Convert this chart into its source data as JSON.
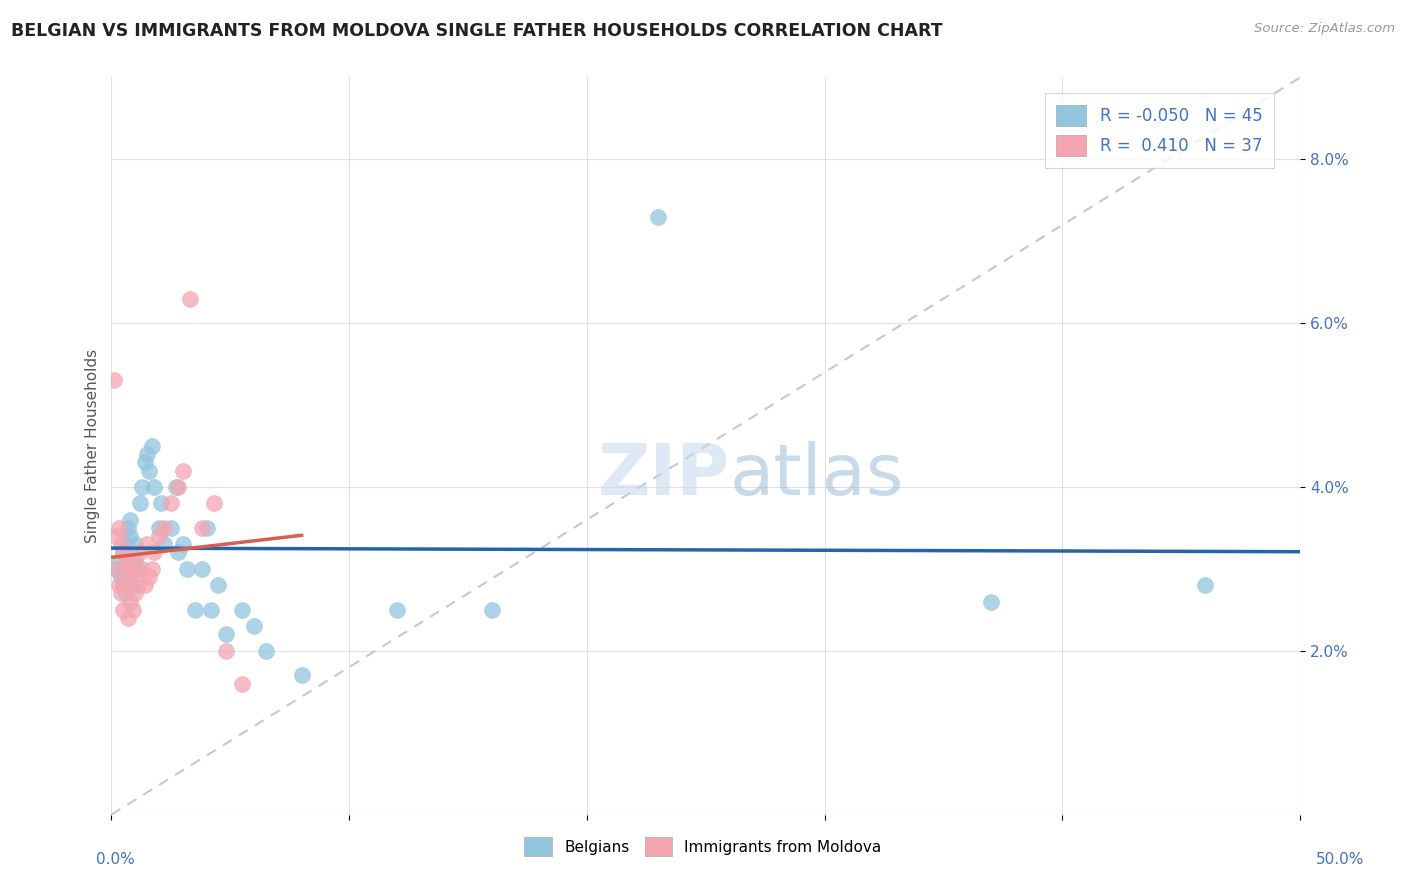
{
  "title": "BELGIAN VS IMMIGRANTS FROM MOLDOVA SINGLE FATHER HOUSEHOLDS CORRELATION CHART",
  "source": "Source: ZipAtlas.com",
  "ylabel": "Single Father Households",
  "watermark_zip": "ZIP",
  "watermark_atlas": "atlas",
  "legend_r1_label": "R = -0.050",
  "legend_n1_label": "N = 45",
  "legend_r2_label": "R =  0.410",
  "legend_n2_label": "N = 37",
  "legend_label1": "Belgians",
  "legend_label2": "Immigrants from Moldova",
  "blue_color": "#92c5de",
  "pink_color": "#f4a5b0",
  "blue_line_color": "#2166ac",
  "pink_line_color": "#d6604d",
  "dashed_line_color": "#c8c8c8",
  "grid_color": "#e0e0e0",
  "title_color": "#222222",
  "axis_color": "#4472c4",
  "background_color": "#ffffff",
  "xlim": [
    0.0,
    0.5
  ],
  "ylim": [
    0.0,
    0.09
  ],
  "yticks": [
    0.02,
    0.04,
    0.06,
    0.08
  ],
  "xticks": [
    0.0,
    0.1,
    0.2,
    0.3,
    0.4,
    0.5
  ],
  "belgians_x": [
    0.002,
    0.003,
    0.004,
    0.005,
    0.005,
    0.006,
    0.006,
    0.007,
    0.007,
    0.008,
    0.008,
    0.009,
    0.01,
    0.01,
    0.011,
    0.012,
    0.013,
    0.014,
    0.015,
    0.016,
    0.017,
    0.018,
    0.02,
    0.021,
    0.022,
    0.025,
    0.027,
    0.028,
    0.03,
    0.032,
    0.035,
    0.038,
    0.04,
    0.042,
    0.045,
    0.048,
    0.055,
    0.06,
    0.065,
    0.08,
    0.12,
    0.16,
    0.23,
    0.37,
    0.46
  ],
  "belgians_y": [
    0.03,
    0.031,
    0.029,
    0.032,
    0.028,
    0.033,
    0.027,
    0.03,
    0.035,
    0.034,
    0.036,
    0.028,
    0.031,
    0.033,
    0.03,
    0.038,
    0.04,
    0.043,
    0.044,
    0.042,
    0.045,
    0.04,
    0.035,
    0.038,
    0.033,
    0.035,
    0.04,
    0.032,
    0.033,
    0.03,
    0.025,
    0.03,
    0.035,
    0.025,
    0.028,
    0.022,
    0.025,
    0.023,
    0.02,
    0.017,
    0.025,
    0.025,
    0.073,
    0.026,
    0.028
  ],
  "moldova_x": [
    0.001,
    0.002,
    0.002,
    0.003,
    0.003,
    0.004,
    0.004,
    0.005,
    0.005,
    0.006,
    0.006,
    0.007,
    0.007,
    0.008,
    0.008,
    0.009,
    0.009,
    0.01,
    0.01,
    0.011,
    0.012,
    0.013,
    0.014,
    0.015,
    0.016,
    0.017,
    0.018,
    0.02,
    0.022,
    0.025,
    0.028,
    0.03,
    0.033,
    0.038,
    0.043,
    0.048,
    0.055
  ],
  "moldova_y": [
    0.053,
    0.034,
    0.03,
    0.035,
    0.028,
    0.033,
    0.027,
    0.032,
    0.025,
    0.031,
    0.028,
    0.029,
    0.024,
    0.03,
    0.026,
    0.031,
    0.025,
    0.03,
    0.027,
    0.028,
    0.032,
    0.03,
    0.028,
    0.033,
    0.029,
    0.03,
    0.032,
    0.034,
    0.035,
    0.038,
    0.04,
    0.042,
    0.063,
    0.035,
    0.038,
    0.02,
    0.016
  ]
}
